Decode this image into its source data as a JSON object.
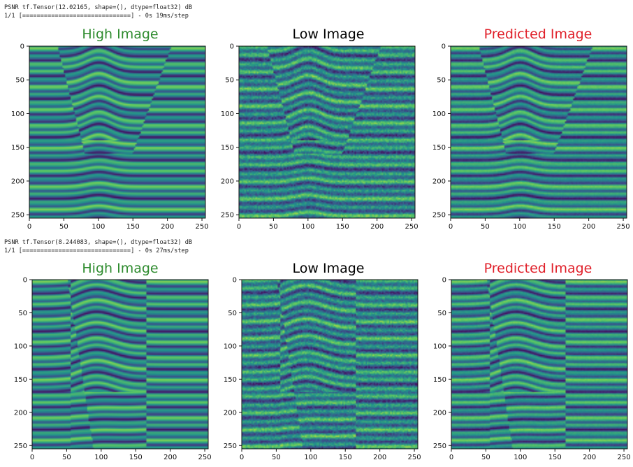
{
  "colors": {
    "title_high": "#2e8b2e",
    "title_low": "#000000",
    "title_pred": "#e0202a",
    "cmap": [
      "#440154",
      "#3b528b",
      "#21918c",
      "#5ec962",
      "#fde725"
    ]
  },
  "rows": [
    {
      "log_line1": "PSNR tf.Tensor(12.02165, shape=(), dtype=float32) dB",
      "log_line2": "1/1 [==============================] - 0s 19ms/step",
      "panels": [
        {
          "title": "High Image"
        },
        {
          "title": "Low Image"
        },
        {
          "title": "Predicted Image"
        }
      ]
    },
    {
      "log_line1": "PSNR tf.Tensor(8.244083, shape=(), dtype=float32) dB",
      "log_line2": "1/1 [==============================] - 0s 27ms/step",
      "panels": [
        {
          "title": "High Image"
        },
        {
          "title": "Low Image"
        },
        {
          "title": "Predicted Image"
        }
      ]
    }
  ],
  "chart_data": {
    "type": "heatmap",
    "x_ticks": [
      0,
      50,
      100,
      150,
      200,
      250
    ],
    "y_ticks": [
      0,
      50,
      100,
      150,
      200,
      250
    ],
    "xlim": [
      0,
      255
    ],
    "ylim": [
      255,
      0
    ],
    "grid": false
  }
}
